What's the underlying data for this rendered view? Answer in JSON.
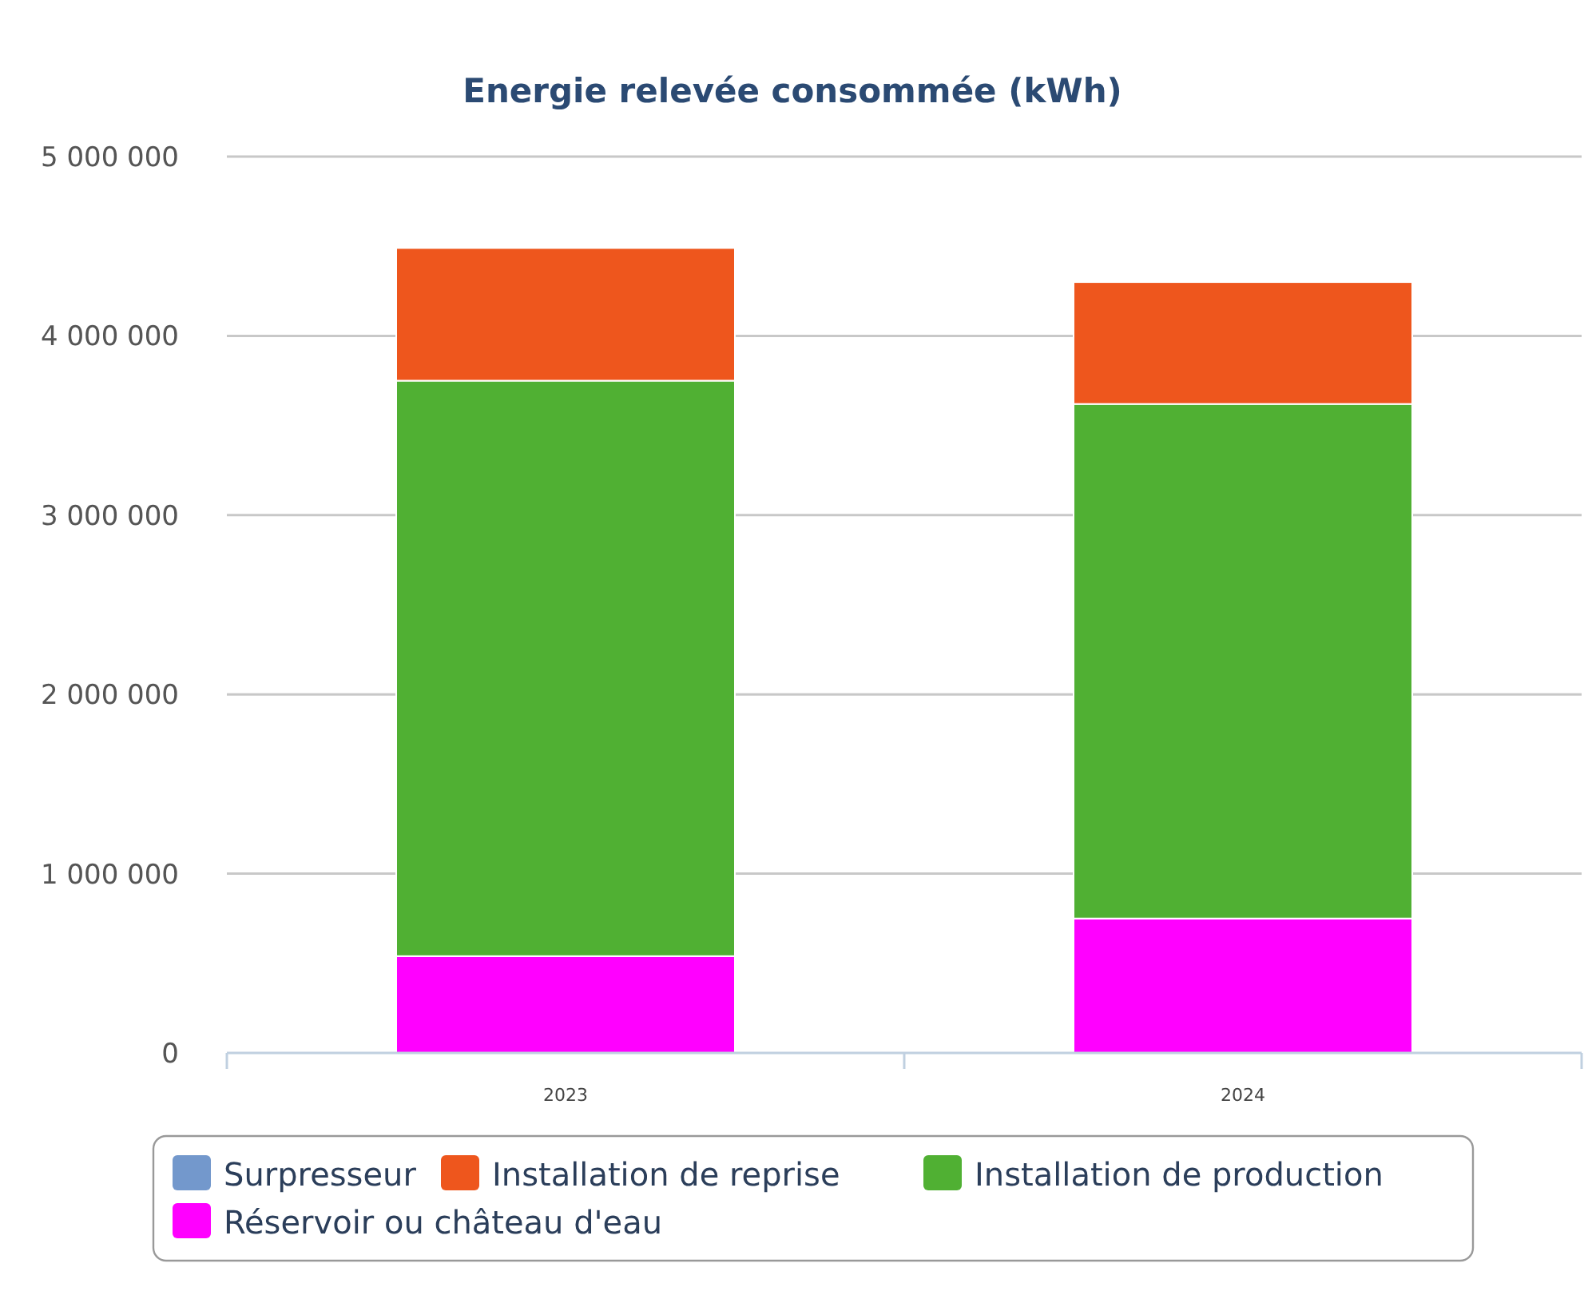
{
  "chart_data": {
    "type": "bar",
    "title": "Energie relevée consommée (kWh)",
    "categories": [
      "2023",
      "2024"
    ],
    "stacked": true,
    "series": [
      {
        "name": "Réservoir ou château d'eau",
        "color": "#ff00ff",
        "values": [
          540000,
          750000
        ]
      },
      {
        "name": "Installation de production",
        "color": "#50b033",
        "values": [
          3210000,
          2870000
        ]
      },
      {
        "name": "Installation de reprise",
        "color": "#ee561d",
        "values": [
          740000,
          680000
        ]
      },
      {
        "name": "Surpresseur",
        "color": "#7398cc",
        "values": [
          0,
          0
        ]
      }
    ],
    "ylim": [
      0,
      5000000
    ],
    "yticks": [
      {
        "value": 0,
        "label": "0"
      },
      {
        "value": 1000000,
        "label": "1 000 000"
      },
      {
        "value": 2000000,
        "label": "2 000 000"
      },
      {
        "value": 3000000,
        "label": "3 000 000"
      },
      {
        "value": 4000000,
        "label": "4 000 000"
      },
      {
        "value": 5000000,
        "label": "5 000 000"
      }
    ],
    "grid": "y",
    "legend": "bottom"
  }
}
